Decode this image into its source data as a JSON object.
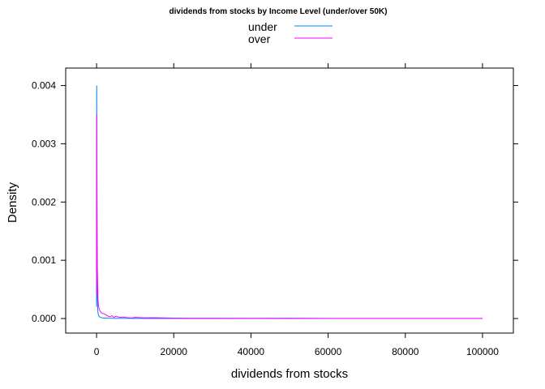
{
  "chart_data": {
    "type": "line",
    "title": "dividends from stocks by Income Level (under/over 50K)",
    "xlabel": "dividends from stocks",
    "ylabel": "Density",
    "xlim": [
      -8000,
      108000
    ],
    "ylim": [
      -0.00025,
      0.0043
    ],
    "x_ticks": [
      0,
      20000,
      40000,
      60000,
      80000,
      100000
    ],
    "x_tick_labels": [
      "0",
      "20000",
      "40000",
      "60000",
      "80000",
      "100000"
    ],
    "y_ticks": [
      0,
      0.001,
      0.002,
      0.003,
      0.004
    ],
    "y_tick_labels": [
      "0.000",
      "0.001",
      "0.002",
      "0.003",
      "0.004"
    ],
    "legend_position": "top",
    "grid": false,
    "series": [
      {
        "name": "under",
        "color": "#0080ff",
        "x": [
          0,
          40,
          80,
          120,
          160,
          200,
          300,
          400,
          600,
          800,
          1000,
          1500,
          2000,
          3000,
          5000,
          8000,
          15000,
          30000,
          50000,
          70000,
          100000
        ],
        "y": [
          0.0002,
          0.004,
          0.0025,
          0.0013,
          0.0007,
          0.0004,
          0.00016,
          8e-05,
          4e-05,
          3e-05,
          2e-05,
          1e-05,
          8e-06,
          5e-06,
          3e-06,
          2e-06,
          1e-06,
          5e-07,
          3e-07,
          2e-07,
          1e-06
        ]
      },
      {
        "name": "over",
        "color": "#ff00ff",
        "x": [
          0,
          50,
          100,
          150,
          200,
          300,
          400,
          500,
          700,
          900,
          1200,
          1500,
          2000,
          2500,
          3000,
          3500,
          4000,
          4500,
          5000,
          6000,
          7000,
          8000,
          9000,
          10000,
          12000,
          15000,
          20000,
          25000,
          30000,
          40000,
          50000,
          60000,
          70000,
          80000,
          90000,
          100000
        ],
        "y": [
          0.0004,
          0.0035,
          0.0026,
          0.0015,
          0.0009,
          0.0005,
          0.0003,
          0.00022,
          0.00016,
          0.00013,
          0.0001,
          9e-05,
          8e-05,
          6e-05,
          4e-05,
          3e-05,
          5e-05,
          2e-05,
          4e-05,
          2e-05,
          2.5e-05,
          1.5e-05,
          1e-05,
          2e-05,
          1.2e-05,
          1.5e-05,
          8e-06,
          6e-06,
          5e-06,
          4e-06,
          6e-06,
          3e-06,
          2e-06,
          2e-06,
          2e-06,
          3e-06
        ]
      }
    ]
  }
}
